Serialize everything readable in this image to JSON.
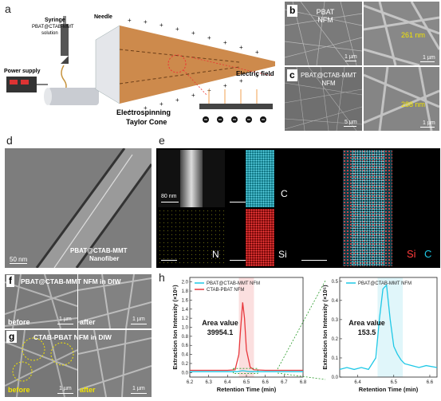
{
  "panels": {
    "a": "a",
    "b": "b",
    "c": "c",
    "d": "d",
    "e": "e",
    "f": "f",
    "g": "g",
    "h": "h"
  },
  "a": {
    "needle": "Needle",
    "syringe": "Syringe",
    "solution1": "PBAT@CTAB-MMT",
    "solution2": "solution",
    "power": "Power supply",
    "cone1": "Electrospinning",
    "cone2": "Taylor Cone",
    "field": "Electric field"
  },
  "b": {
    "label1": "PBAT",
    "label2": "NFM",
    "scale": "1 µm",
    "diam": "261 nm",
    "scale2": "1 µm"
  },
  "c": {
    "label1": "PBAT@CTAB-MMT",
    "label2": "NFM",
    "scale": "5 µm",
    "diam": "288 nm",
    "scale2": "1 µm"
  },
  "d": {
    "scale": "50 nm",
    "caption1": "PBAT@CTAB-MMT",
    "caption2": "Nanofiber"
  },
  "e": {
    "scale": "80 nm",
    "c": "C",
    "n": "N",
    "si": "Si",
    "merge_si": "Si",
    "merge_c": "C"
  },
  "f": {
    "title": "PBAT@CTAB-MMT NFM in DIW",
    "before": "before",
    "after": "after",
    "scale": "1 µm",
    "scale2": "1 µm"
  },
  "g": {
    "title": "CTAB-PBAT NFM in DIW",
    "before": "before",
    "after": "after",
    "scale": "1 µm",
    "scale2": "1 µm"
  },
  "colors": {
    "cyan": "#1ec8e6",
    "red": "#e8383d",
    "yellow": "#f2e400",
    "cone": "#cd8a4c"
  },
  "chart_data": [
    {
      "type": "line",
      "xlabel": "Retention Time (min)",
      "ylabel": "Extraction Ion Intensity (×10⁵)",
      "xlim": [
        6.2,
        6.8
      ],
      "ylim": [
        -0.1,
        2.1
      ],
      "xticks": [
        6.2,
        6.3,
        6.4,
        6.5,
        6.6,
        6.7,
        6.8
      ],
      "yticks": [
        0.0,
        0.2,
        0.4,
        0.6,
        0.8,
        1.0,
        1.2,
        1.4,
        1.6,
        1.8,
        2.0
      ],
      "legend": "top-left",
      "annotation": [
        "Area value",
        "39954.1"
      ],
      "highlight": [
        6.46,
        6.54
      ],
      "series": [
        {
          "name": "PBAT@CTAB-MMT NFM",
          "color": "#1ec8e6",
          "x": [
            6.2,
            6.4,
            6.45,
            6.48,
            6.5,
            6.52,
            6.55,
            6.6,
            6.8
          ],
          "y": [
            0.02,
            0.02,
            0.02,
            0.04,
            0.03,
            0.02,
            0.02,
            0.02,
            0.02
          ]
        },
        {
          "name": "CTAB-PBAT NFM",
          "color": "#e8383d",
          "x": [
            6.2,
            6.4,
            6.44,
            6.46,
            6.47,
            6.48,
            6.49,
            6.5,
            6.52,
            6.54,
            6.6,
            6.8
          ],
          "y": [
            0.05,
            0.05,
            0.06,
            0.4,
            1.0,
            1.55,
            1.2,
            0.5,
            0.12,
            0.06,
            0.05,
            0.05
          ]
        }
      ]
    },
    {
      "type": "line",
      "xlabel": "Retention Time (min)",
      "ylabel": "Extraction Ion Intensity (×10⁵)",
      "xlim": [
        6.35,
        6.62
      ],
      "ylim": [
        0.0,
        0.52
      ],
      "xticks": [
        6.4,
        6.5,
        6.6
      ],
      "yticks": [
        0.0,
        0.1,
        0.2,
        0.3,
        0.4,
        0.5
      ],
      "legend": "top",
      "annotation": [
        "Area value",
        "153.5"
      ],
      "highlight": [
        6.455,
        6.525
      ],
      "series": [
        {
          "name": "PBAT@CTAB-MMT NFM",
          "color": "#1ec8e6",
          "x": [
            6.35,
            6.37,
            6.39,
            6.41,
            6.43,
            6.45,
            6.46,
            6.47,
            6.48,
            6.49,
            6.5,
            6.51,
            6.52,
            6.53,
            6.55,
            6.57,
            6.59,
            6.62
          ],
          "y": [
            0.04,
            0.05,
            0.04,
            0.05,
            0.04,
            0.1,
            0.3,
            0.46,
            0.48,
            0.3,
            0.16,
            0.12,
            0.09,
            0.07,
            0.06,
            0.05,
            0.06,
            0.05
          ]
        }
      ]
    }
  ]
}
